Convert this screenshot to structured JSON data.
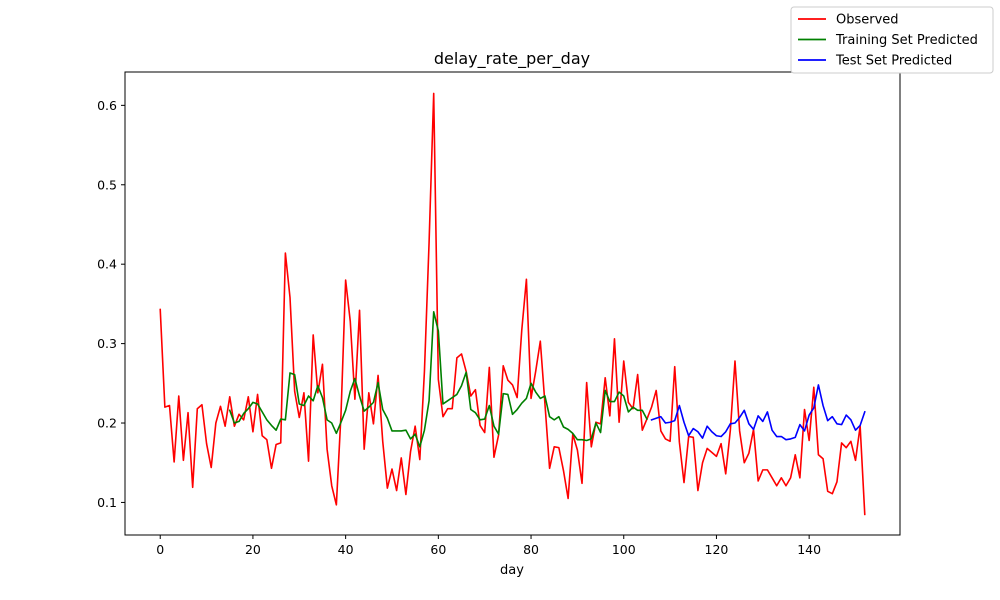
{
  "chart_data": {
    "type": "line",
    "title": "delay_rate_per_day",
    "xlabel": "day",
    "ylabel": "",
    "xlim": [
      -7.6,
      159.6
    ],
    "ylim": [
      0.059,
      0.642
    ],
    "xticks": [
      0,
      20,
      40,
      60,
      80,
      100,
      120,
      140
    ],
    "yticks": [
      0.1,
      0.2,
      0.3,
      0.4,
      0.5,
      0.6
    ],
    "legend_position": "top-right",
    "grid": false,
    "series": [
      {
        "name": "Observed",
        "color": "#ff0000",
        "x": [
          0,
          1,
          2,
          3,
          4,
          5,
          6,
          7,
          8,
          9,
          10,
          11,
          12,
          13,
          14,
          15,
          16,
          17,
          18,
          19,
          20,
          21,
          22,
          23,
          24,
          25,
          26,
          27,
          28,
          29,
          30,
          31,
          32,
          33,
          34,
          35,
          36,
          37,
          38,
          39,
          40,
          41,
          42,
          43,
          44,
          45,
          46,
          47,
          48,
          49,
          50,
          51,
          52,
          53,
          54,
          55,
          56,
          57,
          58,
          59,
          60,
          61,
          62,
          63,
          64,
          65,
          66,
          67,
          68,
          69,
          70,
          71,
          72,
          73,
          74,
          75,
          76,
          77,
          78,
          79,
          80,
          81,
          82,
          83,
          84,
          85,
          86,
          87,
          88,
          89,
          90,
          91,
          92,
          93,
          94,
          95,
          96,
          97,
          98,
          99,
          100,
          101,
          102,
          103,
          104,
          105,
          106,
          107,
          108,
          109,
          110,
          111,
          112,
          113,
          114,
          115,
          116,
          117,
          118,
          119,
          120,
          121,
          122,
          123,
          124,
          125,
          126,
          127,
          128,
          129,
          130,
          131,
          132,
          133,
          134,
          135,
          136,
          137,
          138,
          139,
          140,
          141,
          142,
          143,
          144,
          145,
          146,
          147,
          148,
          149,
          150,
          151,
          152
        ],
        "values": [
          0.343,
          0.22,
          0.222,
          0.151,
          0.234,
          0.153,
          0.213,
          0.119,
          0.218,
          0.223,
          0.174,
          0.144,
          0.2,
          0.221,
          0.196,
          0.233,
          0.196,
          0.211,
          0.204,
          0.233,
          0.189,
          0.236,
          0.184,
          0.179,
          0.143,
          0.173,
          0.175,
          0.414,
          0.358,
          0.24,
          0.207,
          0.238,
          0.152,
          0.311,
          0.238,
          0.274,
          0.167,
          0.121,
          0.097,
          0.211,
          0.38,
          0.328,
          0.23,
          0.342,
          0.167,
          0.238,
          0.199,
          0.26,
          0.177,
          0.118,
          0.142,
          0.115,
          0.156,
          0.11,
          0.164,
          0.196,
          0.154,
          0.265,
          0.427,
          0.615,
          0.255,
          0.208,
          0.218,
          0.218,
          0.282,
          0.287,
          0.265,
          0.234,
          0.242,
          0.197,
          0.188,
          0.27,
          0.157,
          0.185,
          0.272,
          0.254,
          0.248,
          0.232,
          0.317,
          0.381,
          0.231,
          0.265,
          0.303,
          0.224,
          0.143,
          0.17,
          0.169,
          0.14,
          0.105,
          0.186,
          0.166,
          0.124,
          0.251,
          0.17,
          0.201,
          0.199,
          0.257,
          0.209,
          0.306,
          0.201,
          0.278,
          0.226,
          0.218,
          0.261,
          0.191,
          0.205,
          0.22,
          0.241,
          0.19,
          0.18,
          0.177,
          0.271,
          0.176,
          0.125,
          0.183,
          0.182,
          0.115,
          0.15,
          0.168,
          0.163,
          0.158,
          0.174,
          0.136,
          0.191,
          0.278,
          0.19,
          0.15,
          0.162,
          0.192,
          0.127,
          0.141,
          0.141,
          0.131,
          0.121,
          0.131,
          0.121,
          0.131,
          0.16,
          0.131,
          0.217,
          0.178,
          0.245,
          0.16,
          0.155,
          0.114,
          0.111,
          0.126,
          0.175,
          0.169,
          0.177,
          0.153,
          0.196,
          0.085
        ]
      },
      {
        "name": "Training Set Predicted",
        "color": "#008000",
        "x": [
          15,
          16,
          17,
          18,
          19,
          20,
          21,
          22,
          23,
          24,
          25,
          26,
          27,
          28,
          29,
          30,
          31,
          32,
          33,
          34,
          35,
          36,
          37,
          38,
          39,
          40,
          41,
          42,
          43,
          44,
          45,
          46,
          47,
          48,
          49,
          50,
          51,
          52,
          53,
          54,
          55,
          56,
          57,
          58,
          59,
          60,
          61,
          62,
          63,
          64,
          65,
          66,
          67,
          68,
          69,
          70,
          71,
          72,
          73,
          74,
          75,
          76,
          77,
          78,
          79,
          80,
          81,
          82,
          83,
          84,
          85,
          86,
          87,
          88,
          89,
          90,
          91,
          92,
          93,
          94,
          95,
          96,
          97,
          98,
          99,
          100,
          101,
          102,
          103,
          104,
          105
        ],
        "values": [
          0.216,
          0.2,
          0.202,
          0.212,
          0.218,
          0.226,
          0.224,
          0.214,
          0.204,
          0.197,
          0.191,
          0.205,
          0.204,
          0.263,
          0.261,
          0.224,
          0.222,
          0.234,
          0.228,
          0.247,
          0.232,
          0.204,
          0.2,
          0.187,
          0.201,
          0.216,
          0.24,
          0.256,
          0.234,
          0.215,
          0.22,
          0.226,
          0.251,
          0.217,
          0.206,
          0.19,
          0.19,
          0.19,
          0.191,
          0.18,
          0.186,
          0.17,
          0.191,
          0.228,
          0.34,
          0.316,
          0.224,
          0.228,
          0.232,
          0.236,
          0.247,
          0.264,
          0.217,
          0.213,
          0.204,
          0.205,
          0.222,
          0.196,
          0.186,
          0.237,
          0.236,
          0.211,
          0.217,
          0.225,
          0.231,
          0.25,
          0.239,
          0.231,
          0.234,
          0.208,
          0.204,
          0.208,
          0.195,
          0.192,
          0.187,
          0.179,
          0.179,
          0.178,
          0.18,
          0.2,
          0.188,
          0.241,
          0.227,
          0.227,
          0.239,
          0.234,
          0.214,
          0.22,
          0.216,
          0.216,
          0.205
        ]
      },
      {
        "name": "Test Set Predicted",
        "color": "#0000ff",
        "x": [
          106,
          107,
          108,
          109,
          110,
          111,
          112,
          113,
          114,
          115,
          116,
          117,
          118,
          119,
          120,
          121,
          122,
          123,
          124,
          125,
          126,
          127,
          128,
          129,
          130,
          131,
          132,
          133,
          134,
          135,
          136,
          137,
          138,
          139,
          140,
          141,
          142,
          143,
          144,
          145,
          146,
          147,
          148,
          149,
          150,
          151,
          152
        ],
        "values": [
          0.204,
          0.206,
          0.208,
          0.2,
          0.201,
          0.203,
          0.222,
          0.201,
          0.184,
          0.193,
          0.189,
          0.181,
          0.196,
          0.189,
          0.184,
          0.183,
          0.189,
          0.199,
          0.2,
          0.207,
          0.216,
          0.199,
          0.192,
          0.209,
          0.202,
          0.214,
          0.191,
          0.183,
          0.183,
          0.179,
          0.18,
          0.182,
          0.198,
          0.19,
          0.21,
          0.219,
          0.248,
          0.222,
          0.203,
          0.208,
          0.199,
          0.198,
          0.21,
          0.204,
          0.191,
          0.197,
          0.214
        ]
      }
    ]
  }
}
